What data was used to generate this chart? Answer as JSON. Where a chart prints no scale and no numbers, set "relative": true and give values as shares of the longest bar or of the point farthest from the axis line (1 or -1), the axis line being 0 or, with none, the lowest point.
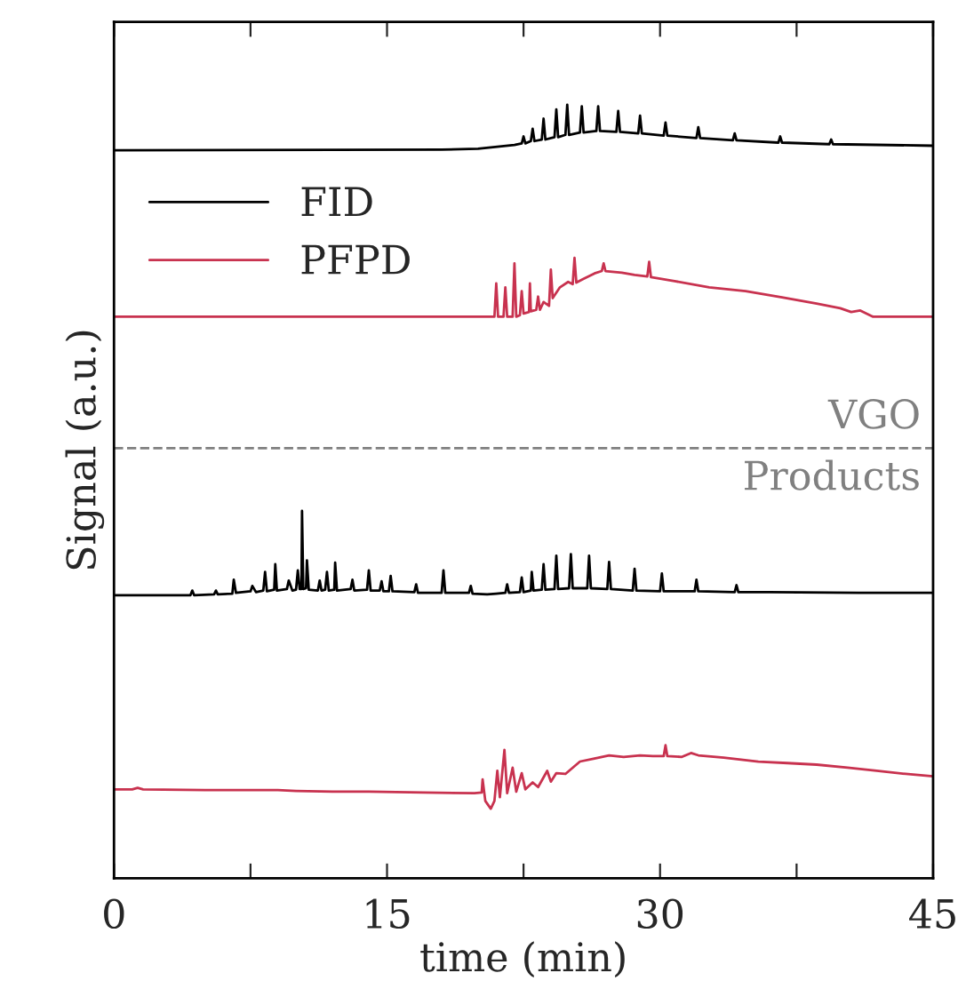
{
  "chart_data": {
    "type": "line",
    "relative": true,
    "xlabel": "time (min)",
    "ylabel": "Signal (a.u.)",
    "xlim": [
      0,
      45
    ],
    "xticks": [
      0,
      15,
      30,
      45,
      {
        "value": 7.5,
        "label": null
      },
      {
        "value": 22.5,
        "label": null
      },
      {
        "value": 37.5,
        "label": null
      }
    ],
    "tick_labels": "x",
    "grid": false,
    "legend": "top left",
    "line_style": "solid",
    "marker": "none",
    "ref_lines": [
      {
        "axis": "y",
        "value": 0.556,
        "label": "VGO",
        "color": "#808080",
        "line_style": "dashed"
      }
    ],
    "annotations": [
      "Products"
    ],
    "series": [
      {
        "name": "FID",
        "color": "#000000",
        "x": [
          0,
          18,
          20,
          22,
          22.4,
          22.5,
          22.6,
          22.9,
          23.0,
          23.1,
          23.5,
          23.6,
          23.7,
          24.2,
          24.3,
          24.4,
          24.8,
          24.9,
          25.0,
          25.6,
          25.7,
          25.8,
          26.5,
          26.6,
          26.7,
          27.6,
          27.7,
          27.8,
          28.8,
          28.9,
          29.0,
          30.2,
          30.3,
          30.4,
          32.0,
          32.1,
          32.2,
          34.0,
          34.1,
          34.2,
          36.5,
          36.6,
          36.7,
          39.3,
          39.4,
          39.5,
          45
        ],
        "values": [
          0.941,
          0.942,
          0.943,
          0.948,
          0.95,
          0.959,
          0.95,
          0.953,
          0.969,
          0.953,
          0.955,
          0.982,
          0.955,
          0.958,
          0.994,
          0.958,
          0.961,
          1.0,
          0.961,
          0.964,
          0.998,
          0.964,
          0.966,
          0.998,
          0.966,
          0.965,
          0.992,
          0.965,
          0.963,
          0.986,
          0.963,
          0.96,
          0.977,
          0.96,
          0.957,
          0.971,
          0.957,
          0.954,
          0.963,
          0.954,
          0.951,
          0.959,
          0.951,
          0.949,
          0.955,
          0.949,
          0.947
        ]
      },
      {
        "name": "PFPD",
        "color": "#c8324f",
        "x": [
          0,
          20.9,
          21.0,
          21.1,
          21.4,
          21.5,
          21.6,
          21.9,
          22.0,
          22.1,
          22.3,
          22.4,
          22.5,
          22.8,
          22.85,
          22.9,
          23.2,
          23.3,
          23.4,
          23.6,
          23.9,
          24.0,
          24.1,
          24.5,
          24.95,
          25.2,
          25.3,
          25.4,
          25.8,
          26.4,
          26.8,
          26.9,
          27.0,
          27.9,
          28.6,
          29.3,
          29.4,
          29.5,
          30.8,
          32.7,
          34.7,
          36.7,
          38.6,
          39.9,
          40.5,
          41.0,
          41.6,
          41.7,
          45
        ],
        "values": [
          0.726,
          0.726,
          0.769,
          0.726,
          0.726,
          0.764,
          0.726,
          0.726,
          0.795,
          0.726,
          0.728,
          0.759,
          0.73,
          0.732,
          0.769,
          0.733,
          0.735,
          0.752,
          0.735,
          0.745,
          0.74,
          0.787,
          0.75,
          0.764,
          0.771,
          0.768,
          0.802,
          0.77,
          0.775,
          0.782,
          0.785,
          0.795,
          0.785,
          0.783,
          0.78,
          0.778,
          0.797,
          0.777,
          0.772,
          0.764,
          0.759,
          0.751,
          0.743,
          0.737,
          0.732,
          0.734,
          0.727,
          0.726,
          0.726
        ]
      },
      {
        "color": "#000000",
        "x": [
          0,
          4.2,
          4.3,
          4.4,
          5.5,
          5.6,
          5.7,
          6.5,
          6.58,
          6.7,
          7.5,
          7.6,
          7.8,
          8.2,
          8.3,
          8.4,
          8.8,
          8.86,
          8.95,
          9.5,
          9.6,
          9.8,
          10.0,
          10.1,
          10.2,
          10.3,
          10.33,
          10.4,
          10.55,
          10.6,
          10.7,
          11.2,
          11.3,
          11.4,
          11.6,
          11.7,
          11.8,
          12.1,
          12.15,
          12.25,
          13.0,
          13.1,
          13.2,
          13.9,
          14.0,
          14.1,
          14.6,
          14.7,
          14.8,
          15.1,
          15.2,
          15.3,
          16.5,
          16.6,
          16.7,
          18.0,
          18.1,
          18.2,
          19.5,
          19.6,
          19.7,
          20.5,
          21.0,
          21.5,
          21.6,
          21.7,
          22.3,
          22.4,
          22.5,
          22.9,
          22.95,
          23.05,
          23.5,
          23.6,
          23.7,
          24.2,
          24.3,
          24.4,
          25.0,
          25.1,
          25.2,
          26.0,
          26.1,
          26.2,
          27.1,
          27.2,
          27.3,
          28.5,
          28.6,
          28.7,
          30.0,
          30.1,
          30.2,
          31.9,
          32.0,
          32.1,
          34.1,
          34.2,
          34.3,
          36,
          40.9,
          45
        ],
        "values": [
          0.366,
          0.366,
          0.372,
          0.366,
          0.367,
          0.372,
          0.367,
          0.368,
          0.386,
          0.369,
          0.371,
          0.378,
          0.37,
          0.372,
          0.396,
          0.371,
          0.373,
          0.406,
          0.372,
          0.374,
          0.385,
          0.372,
          0.373,
          0.398,
          0.374,
          0.374,
          0.475,
          0.374,
          0.375,
          0.411,
          0.373,
          0.372,
          0.385,
          0.372,
          0.373,
          0.396,
          0.372,
          0.373,
          0.408,
          0.372,
          0.374,
          0.386,
          0.372,
          0.373,
          0.398,
          0.372,
          0.372,
          0.384,
          0.371,
          0.371,
          0.391,
          0.371,
          0.37,
          0.38,
          0.369,
          0.369,
          0.398,
          0.369,
          0.369,
          0.378,
          0.368,
          0.367,
          0.368,
          0.369,
          0.38,
          0.369,
          0.37,
          0.389,
          0.37,
          0.372,
          0.396,
          0.372,
          0.373,
          0.406,
          0.373,
          0.374,
          0.417,
          0.374,
          0.375,
          0.419,
          0.375,
          0.375,
          0.417,
          0.375,
          0.374,
          0.409,
          0.374,
          0.372,
          0.4,
          0.372,
          0.371,
          0.394,
          0.371,
          0.371,
          0.386,
          0.371,
          0.37,
          0.379,
          0.37,
          0.37,
          0.369,
          0.369
        ]
      },
      {
        "color": "#c8324f",
        "x": [
          0,
          1.0,
          1.3,
          1.6,
          5,
          9,
          10,
          12,
          14,
          17,
          19.8,
          20.2,
          20.25,
          20.4,
          20.7,
          20.9,
          21.06,
          21.2,
          21.45,
          21.6,
          21.9,
          22.1,
          22.4,
          22.6,
          23.0,
          23.3,
          23.8,
          24.0,
          24.3,
          24.8,
          25.6,
          26.4,
          27.2,
          28.0,
          28.9,
          29.6,
          30.2,
          30.3,
          30.4,
          31.2,
          31.7,
          32.1,
          33.5,
          35.4,
          37,
          38.6,
          40.3,
          41.9,
          43.5,
          45
        ],
        "values": [
          0.115,
          0.115,
          0.117,
          0.115,
          0.114,
          0.114,
          0.113,
          0.112,
          0.112,
          0.111,
          0.11,
          0.111,
          0.128,
          0.1,
          0.09,
          0.1,
          0.139,
          0.105,
          0.166,
          0.11,
          0.143,
          0.112,
          0.136,
          0.115,
          0.124,
          0.118,
          0.139,
          0.125,
          0.136,
          0.135,
          0.151,
          0.155,
          0.159,
          0.157,
          0.159,
          0.158,
          0.158,
          0.172,
          0.158,
          0.157,
          0.162,
          0.159,
          0.156,
          0.151,
          0.149,
          0.147,
          0.143,
          0.139,
          0.135,
          0.132
        ]
      }
    ]
  }
}
